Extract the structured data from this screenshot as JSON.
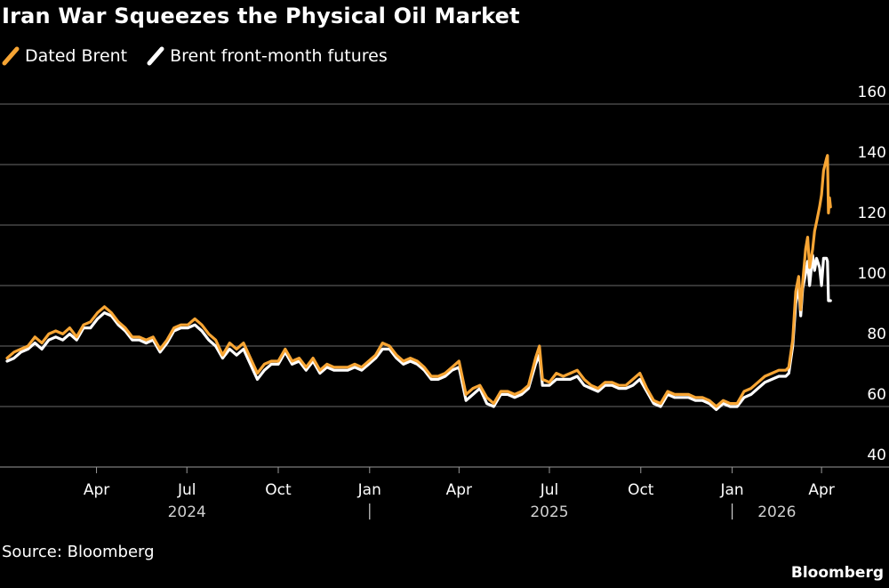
{
  "header": {
    "title": "Iran War Squeezes the Physical Oil Market"
  },
  "legend": [
    {
      "label": "Dated Brent",
      "color": "#f7a534"
    },
    {
      "label": "Brent front-month futures",
      "color": "#ffffff"
    }
  ],
  "footer": {
    "source": "Source: Bloomberg",
    "brand": "Bloomberg"
  },
  "chart_data": {
    "type": "line",
    "title": "Iran War Squeezes the Physical Oil Market",
    "xlabel": "",
    "ylabel": "",
    "ylim": [
      40,
      160
    ],
    "yticks": [
      40,
      60,
      80,
      100,
      120,
      140,
      160
    ],
    "xlim": [
      "2024-01-02",
      "2026-04-17"
    ],
    "grid": true,
    "legend_position": "top-left",
    "xticks": [
      {
        "label": "Apr",
        "date": "2024-04-01"
      },
      {
        "label": "Jul",
        "date": "2024-07-01"
      },
      {
        "label": "Oct",
        "date": "2024-10-01"
      },
      {
        "label": "Jan",
        "date": "2025-01-01"
      },
      {
        "label": "Apr",
        "date": "2025-04-01"
      },
      {
        "label": "Jul",
        "date": "2025-07-01"
      },
      {
        "label": "Oct",
        "date": "2025-10-01"
      },
      {
        "label": "Jan",
        "date": "2026-01-01"
      },
      {
        "label": "Apr",
        "date": "2026-04-01"
      }
    ],
    "year_labels": [
      {
        "label": "2024",
        "date": "2024-07-01"
      },
      {
        "label": "2025",
        "date": "2025-07-01"
      },
      {
        "label": "2026",
        "date": "2026-02-15"
      }
    ],
    "year_separators": [
      "2025-01-01",
      "2026-01-01"
    ],
    "series": [
      {
        "name": "Dated Brent",
        "color": "#f7a534",
        "points": [
          [
            "2024-01-02",
            76
          ],
          [
            "2024-01-09",
            78
          ],
          [
            "2024-01-16",
            79
          ],
          [
            "2024-01-23",
            80
          ],
          [
            "2024-01-30",
            83
          ],
          [
            "2024-02-06",
            81
          ],
          [
            "2024-02-13",
            84
          ],
          [
            "2024-02-20",
            85
          ],
          [
            "2024-02-27",
            84
          ],
          [
            "2024-03-05",
            86
          ],
          [
            "2024-03-12",
            83
          ],
          [
            "2024-03-19",
            87
          ],
          [
            "2024-03-26",
            88
          ],
          [
            "2024-04-02",
            91
          ],
          [
            "2024-04-09",
            93
          ],
          [
            "2024-04-16",
            91
          ],
          [
            "2024-04-23",
            88
          ],
          [
            "2024-04-30",
            86
          ],
          [
            "2024-05-07",
            83
          ],
          [
            "2024-05-14",
            83
          ],
          [
            "2024-05-21",
            82
          ],
          [
            "2024-05-28",
            83
          ],
          [
            "2024-06-04",
            79
          ],
          [
            "2024-06-11",
            82
          ],
          [
            "2024-06-18",
            86
          ],
          [
            "2024-06-25",
            87
          ],
          [
            "2024-07-02",
            87
          ],
          [
            "2024-07-09",
            89
          ],
          [
            "2024-07-16",
            87
          ],
          [
            "2024-07-23",
            84
          ],
          [
            "2024-07-30",
            82
          ],
          [
            "2024-08-06",
            77
          ],
          [
            "2024-08-13",
            81
          ],
          [
            "2024-08-20",
            79
          ],
          [
            "2024-08-27",
            81
          ],
          [
            "2024-09-03",
            76
          ],
          [
            "2024-09-10",
            71
          ],
          [
            "2024-09-17",
            74
          ],
          [
            "2024-09-24",
            75
          ],
          [
            "2024-10-01",
            75
          ],
          [
            "2024-10-08",
            79
          ],
          [
            "2024-10-15",
            75
          ],
          [
            "2024-10-22",
            76
          ],
          [
            "2024-10-29",
            73
          ],
          [
            "2024-11-05",
            76
          ],
          [
            "2024-11-12",
            72
          ],
          [
            "2024-11-19",
            74
          ],
          [
            "2024-11-26",
            73
          ],
          [
            "2024-12-03",
            73
          ],
          [
            "2024-12-10",
            73
          ],
          [
            "2024-12-17",
            74
          ],
          [
            "2024-12-24",
            73
          ],
          [
            "2024-12-31",
            75
          ],
          [
            "2025-01-07",
            77
          ],
          [
            "2025-01-14",
            81
          ],
          [
            "2025-01-21",
            80
          ],
          [
            "2025-01-28",
            77
          ],
          [
            "2025-02-04",
            75
          ],
          [
            "2025-02-11",
            76
          ],
          [
            "2025-02-18",
            75
          ],
          [
            "2025-02-25",
            73
          ],
          [
            "2025-03-04",
            70
          ],
          [
            "2025-03-11",
            70
          ],
          [
            "2025-03-18",
            71
          ],
          [
            "2025-03-25",
            73
          ],
          [
            "2025-04-01",
            75
          ],
          [
            "2025-04-08",
            64
          ],
          [
            "2025-04-15",
            66
          ],
          [
            "2025-04-22",
            67
          ],
          [
            "2025-04-29",
            63
          ],
          [
            "2025-05-06",
            61
          ],
          [
            "2025-05-13",
            65
          ],
          [
            "2025-05-20",
            65
          ],
          [
            "2025-05-27",
            64
          ],
          [
            "2025-06-03",
            65
          ],
          [
            "2025-06-10",
            67
          ],
          [
            "2025-06-17",
            76
          ],
          [
            "2025-06-21",
            80
          ],
          [
            "2025-06-24",
            69
          ],
          [
            "2025-07-01",
            68
          ],
          [
            "2025-07-08",
            71
          ],
          [
            "2025-07-15",
            70
          ],
          [
            "2025-07-22",
            71
          ],
          [
            "2025-07-29",
            72
          ],
          [
            "2025-08-05",
            69
          ],
          [
            "2025-08-12",
            67
          ],
          [
            "2025-08-19",
            66
          ],
          [
            "2025-08-26",
            68
          ],
          [
            "2025-09-02",
            68
          ],
          [
            "2025-09-09",
            67
          ],
          [
            "2025-09-16",
            67
          ],
          [
            "2025-09-23",
            69
          ],
          [
            "2025-09-30",
            71
          ],
          [
            "2025-10-07",
            66
          ],
          [
            "2025-10-14",
            62
          ],
          [
            "2025-10-21",
            61
          ],
          [
            "2025-10-28",
            65
          ],
          [
            "2025-11-04",
            64
          ],
          [
            "2025-11-11",
            64
          ],
          [
            "2025-11-18",
            64
          ],
          [
            "2025-11-25",
            63
          ],
          [
            "2025-12-02",
            63
          ],
          [
            "2025-12-09",
            62
          ],
          [
            "2025-12-16",
            60
          ],
          [
            "2025-12-23",
            62
          ],
          [
            "2025-12-30",
            61
          ],
          [
            "2026-01-06",
            61
          ],
          [
            "2026-01-13",
            65
          ],
          [
            "2026-01-20",
            66
          ],
          [
            "2026-01-27",
            68
          ],
          [
            "2026-02-03",
            70
          ],
          [
            "2026-02-10",
            71
          ],
          [
            "2026-02-17",
            72
          ],
          [
            "2026-02-24",
            72
          ],
          [
            "2026-02-27",
            73
          ],
          [
            "2026-03-03",
            82
          ],
          [
            "2026-03-06",
            98
          ],
          [
            "2026-03-09",
            103
          ],
          [
            "2026-03-11",
            92
          ],
          [
            "2026-03-13",
            101
          ],
          [
            "2026-03-16",
            112
          ],
          [
            "2026-03-18",
            116
          ],
          [
            "2026-03-20",
            106
          ],
          [
            "2026-03-23",
            112
          ],
          [
            "2026-03-25",
            118
          ],
          [
            "2026-03-27",
            121
          ],
          [
            "2026-03-30",
            126
          ],
          [
            "2026-04-01",
            130
          ],
          [
            "2026-04-03",
            138
          ],
          [
            "2026-04-06",
            142
          ],
          [
            "2026-04-07",
            143
          ],
          [
            "2026-04-08",
            124
          ],
          [
            "2026-04-09",
            129
          ],
          [
            "2026-04-10",
            126
          ]
        ]
      },
      {
        "name": "Brent front-month futures",
        "color": "#ffffff",
        "points": [
          [
            "2024-01-02",
            75
          ],
          [
            "2024-01-09",
            76
          ],
          [
            "2024-01-16",
            78
          ],
          [
            "2024-01-23",
            79
          ],
          [
            "2024-01-30",
            81
          ],
          [
            "2024-02-06",
            79
          ],
          [
            "2024-02-13",
            82
          ],
          [
            "2024-02-20",
            83
          ],
          [
            "2024-02-27",
            82
          ],
          [
            "2024-03-05",
            84
          ],
          [
            "2024-03-12",
            82
          ],
          [
            "2024-03-19",
            86
          ],
          [
            "2024-03-26",
            86
          ],
          [
            "2024-04-02",
            89
          ],
          [
            "2024-04-09",
            91
          ],
          [
            "2024-04-16",
            90
          ],
          [
            "2024-04-23",
            87
          ],
          [
            "2024-04-30",
            85
          ],
          [
            "2024-05-07",
            82
          ],
          [
            "2024-05-14",
            82
          ],
          [
            "2024-05-21",
            81
          ],
          [
            "2024-05-28",
            82
          ],
          [
            "2024-06-04",
            78
          ],
          [
            "2024-06-11",
            81
          ],
          [
            "2024-06-18",
            85
          ],
          [
            "2024-06-25",
            86
          ],
          [
            "2024-07-02",
            86
          ],
          [
            "2024-07-09",
            87
          ],
          [
            "2024-07-16",
            85
          ],
          [
            "2024-07-23",
            82
          ],
          [
            "2024-07-30",
            80
          ],
          [
            "2024-08-06",
            76
          ],
          [
            "2024-08-13",
            79
          ],
          [
            "2024-08-20",
            77
          ],
          [
            "2024-08-27",
            79
          ],
          [
            "2024-09-03",
            74
          ],
          [
            "2024-09-10",
            69
          ],
          [
            "2024-09-17",
            72
          ],
          [
            "2024-09-24",
            74
          ],
          [
            "2024-10-01",
            74
          ],
          [
            "2024-10-08",
            78
          ],
          [
            "2024-10-15",
            74
          ],
          [
            "2024-10-22",
            75
          ],
          [
            "2024-10-29",
            72
          ],
          [
            "2024-11-05",
            75
          ],
          [
            "2024-11-12",
            71
          ],
          [
            "2024-11-19",
            73
          ],
          [
            "2024-11-26",
            72
          ],
          [
            "2024-12-03",
            72
          ],
          [
            "2024-12-10",
            72
          ],
          [
            "2024-12-17",
            73
          ],
          [
            "2024-12-24",
            72
          ],
          [
            "2024-12-31",
            74
          ],
          [
            "2025-01-07",
            76
          ],
          [
            "2025-01-14",
            79
          ],
          [
            "2025-01-21",
            79
          ],
          [
            "2025-01-28",
            76
          ],
          [
            "2025-02-04",
            74
          ],
          [
            "2025-02-11",
            75
          ],
          [
            "2025-02-18",
            74
          ],
          [
            "2025-02-25",
            72
          ],
          [
            "2025-03-04",
            69
          ],
          [
            "2025-03-11",
            69
          ],
          [
            "2025-03-18",
            70
          ],
          [
            "2025-03-25",
            72
          ],
          [
            "2025-04-01",
            73
          ],
          [
            "2025-04-08",
            62
          ],
          [
            "2025-04-15",
            64
          ],
          [
            "2025-04-22",
            66
          ],
          [
            "2025-04-29",
            61
          ],
          [
            "2025-05-06",
            60
          ],
          [
            "2025-05-13",
            64
          ],
          [
            "2025-05-20",
            64
          ],
          [
            "2025-05-27",
            63
          ],
          [
            "2025-06-03",
            64
          ],
          [
            "2025-06-10",
            66
          ],
          [
            "2025-06-17",
            74
          ],
          [
            "2025-06-21",
            77
          ],
          [
            "2025-06-24",
            67
          ],
          [
            "2025-07-01",
            67
          ],
          [
            "2025-07-08",
            69
          ],
          [
            "2025-07-15",
            69
          ],
          [
            "2025-07-22",
            69
          ],
          [
            "2025-07-29",
            70
          ],
          [
            "2025-08-05",
            67
          ],
          [
            "2025-08-12",
            66
          ],
          [
            "2025-08-19",
            65
          ],
          [
            "2025-08-26",
            67
          ],
          [
            "2025-09-02",
            67
          ],
          [
            "2025-09-09",
            66
          ],
          [
            "2025-09-16",
            66
          ],
          [
            "2025-09-23",
            67
          ],
          [
            "2025-09-30",
            69
          ],
          [
            "2025-10-07",
            65
          ],
          [
            "2025-10-14",
            61
          ],
          [
            "2025-10-21",
            60
          ],
          [
            "2025-10-28",
            64
          ],
          [
            "2025-11-04",
            63
          ],
          [
            "2025-11-11",
            63
          ],
          [
            "2025-11-18",
            63
          ],
          [
            "2025-11-25",
            62
          ],
          [
            "2025-12-02",
            62
          ],
          [
            "2025-12-09",
            61
          ],
          [
            "2025-12-16",
            59
          ],
          [
            "2025-12-23",
            61
          ],
          [
            "2025-12-30",
            60
          ],
          [
            "2026-01-06",
            60
          ],
          [
            "2026-01-13",
            63
          ],
          [
            "2026-01-20",
            64
          ],
          [
            "2026-01-27",
            66
          ],
          [
            "2026-02-03",
            68
          ],
          [
            "2026-02-10",
            69
          ],
          [
            "2026-02-17",
            70
          ],
          [
            "2026-02-24",
            70
          ],
          [
            "2026-02-27",
            71
          ],
          [
            "2026-03-03",
            80
          ],
          [
            "2026-03-06",
            94
          ],
          [
            "2026-03-09",
            100
          ],
          [
            "2026-03-11",
            90
          ],
          [
            "2026-03-13",
            99
          ],
          [
            "2026-03-16",
            104
          ],
          [
            "2026-03-18",
            108
          ],
          [
            "2026-03-20",
            100
          ],
          [
            "2026-03-23",
            110
          ],
          [
            "2026-03-25",
            105
          ],
          [
            "2026-03-27",
            109
          ],
          [
            "2026-03-30",
            106
          ],
          [
            "2026-04-01",
            100
          ],
          [
            "2026-04-03",
            109
          ],
          [
            "2026-04-06",
            109
          ],
          [
            "2026-04-07",
            108
          ],
          [
            "2026-04-08",
            95
          ],
          [
            "2026-04-09",
            95
          ],
          [
            "2026-04-10",
            95
          ]
        ]
      }
    ]
  }
}
